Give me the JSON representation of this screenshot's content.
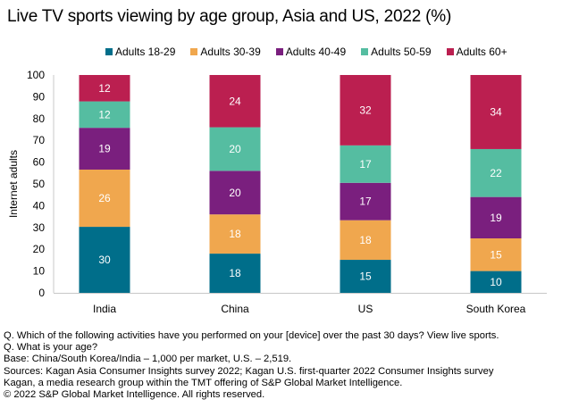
{
  "chart_data": {
    "type": "bar",
    "stacked": true,
    "normalized_to_100": true,
    "title": "Live TV sports viewing by age group, Asia and US, 2022 (%)",
    "xlabel": "",
    "ylabel": "Internet adults",
    "ylim": [
      0,
      100
    ],
    "yticks": [
      "0",
      "10",
      "20",
      "30",
      "40",
      "50",
      "60",
      "70",
      "80",
      "90",
      "100"
    ],
    "categories": [
      "India",
      "China",
      "US",
      "South Korea"
    ],
    "legend_position": "top",
    "grid": false,
    "series": [
      {
        "name": "Adults 18-29",
        "color": "#006E8A",
        "values": [
          30,
          18,
          15,
          10
        ]
      },
      {
        "name": "Adults 30-39",
        "color": "#F0A74E",
        "values": [
          26,
          18,
          18,
          15
        ]
      },
      {
        "name": "Adults 40-49",
        "color": "#7A1F7E",
        "values": [
          19,
          20,
          17,
          19
        ]
      },
      {
        "name": "Adults 50-59",
        "color": "#55BDA1",
        "values": [
          12,
          20,
          17,
          22
        ]
      },
      {
        "name": "Adults 60+",
        "color": "#BB1F50",
        "values": [
          12,
          24,
          32,
          34
        ]
      }
    ]
  },
  "notes": [
    "Q. Which of the following activities have you performed on your [device] over the past 30 days? View live sports.",
    "Q. What is your age?",
    "Base: China/South Korea/India – 1,000 per market, U.S. – 2,519.",
    "Sources: Kagan Asia Consumer Insights survey 2022; Kagan U.S. first-quarter 2022 Consumer Insights survey",
    "Kagan, a media research group within the TMT offering of S&P Global Market Intelligence.",
    "© 2022 S&P Global Market Intelligence.  All rights reserved."
  ]
}
